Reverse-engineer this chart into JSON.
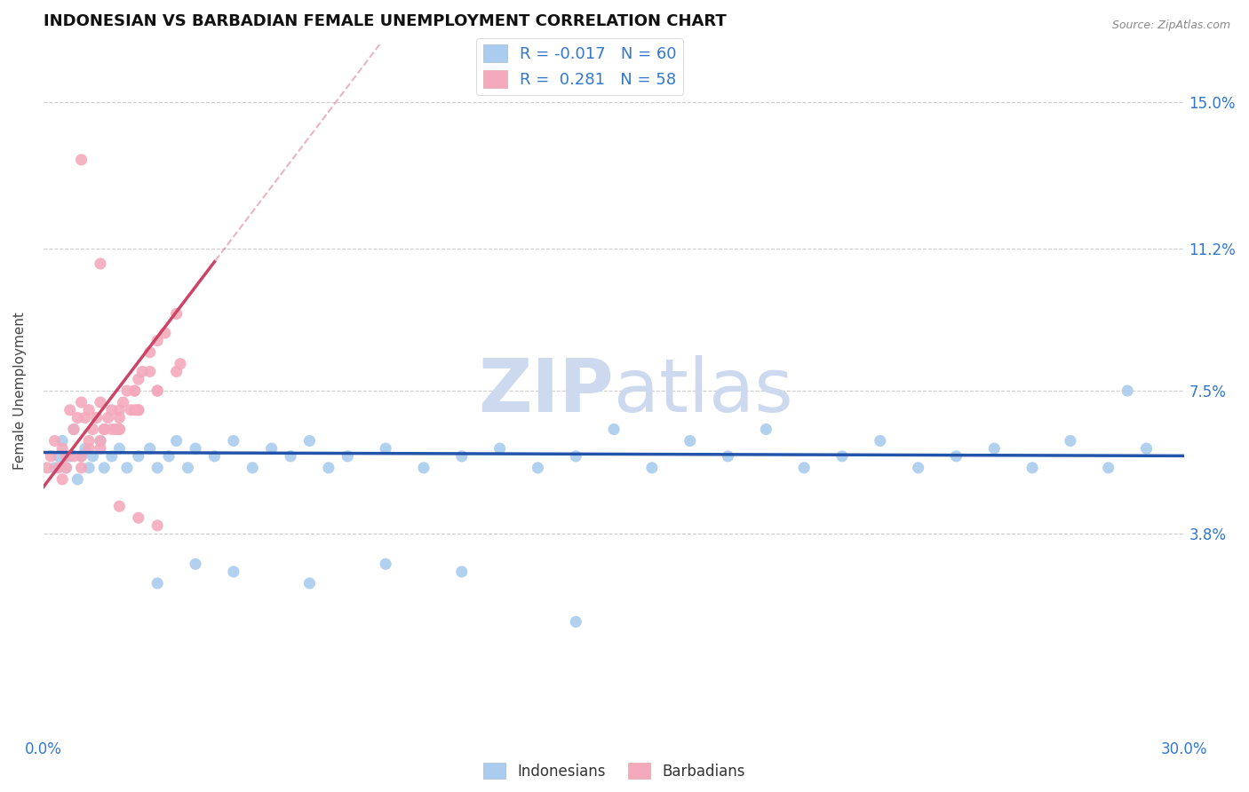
{
  "title": "INDONESIAN VS BARBADIAN FEMALE UNEMPLOYMENT CORRELATION CHART",
  "source": "Source: ZipAtlas.com",
  "ylabel": "Female Unemployment",
  "xlim": [
    0.0,
    30.0
  ],
  "ylim": [
    -1.5,
    16.5
  ],
  "yticks": [
    3.8,
    7.5,
    11.2,
    15.0
  ],
  "ytick_labels": [
    "3.8%",
    "7.5%",
    "11.2%",
    "15.0%"
  ],
  "xticks": [
    0.0,
    30.0
  ],
  "xtick_labels": [
    "0.0%",
    "30.0%"
  ],
  "background_color": "#ffffff",
  "grid_color": "#cccccc",
  "indonesian_color": "#aaccee",
  "barbadian_color": "#f4aabc",
  "indonesian_line_color": "#2255aa",
  "barbadian_line_color": "#cc4466",
  "legend_r_indonesian": "-0.017",
  "legend_n_indonesian": "60",
  "legend_r_barbadian": "0.281",
  "legend_n_barbadian": "58",
  "title_fontsize": 13,
  "axis_label_fontsize": 11,
  "tick_fontsize": 12,
  "watermark_zip": "ZIP",
  "watermark_atlas": "atlas",
  "watermark_color": "#ccd9ee",
  "watermark_fontsize": 60,
  "indonesian_scatter_x": [
    0.3,
    0.4,
    0.5,
    0.6,
    0.7,
    0.8,
    0.9,
    1.0,
    1.1,
    1.2,
    1.3,
    1.5,
    1.6,
    1.8,
    2.0,
    2.2,
    2.5,
    2.8,
    3.0,
    3.3,
    3.5,
    3.8,
    4.0,
    4.5,
    5.0,
    5.5,
    6.0,
    6.5,
    7.0,
    7.5,
    8.0,
    9.0,
    10.0,
    11.0,
    12.0,
    13.0,
    14.0,
    15.0,
    16.0,
    17.0,
    18.0,
    19.0,
    20.0,
    21.0,
    22.0,
    23.0,
    24.0,
    25.0,
    26.0,
    27.0,
    28.0,
    29.0,
    3.0,
    4.0,
    5.0,
    7.0,
    9.0,
    11.0,
    14.0,
    28.5
  ],
  "indonesian_scatter_y": [
    5.5,
    5.8,
    6.2,
    5.5,
    5.8,
    6.5,
    5.2,
    5.8,
    6.0,
    5.5,
    5.8,
    6.2,
    5.5,
    5.8,
    6.0,
    5.5,
    5.8,
    6.0,
    5.5,
    5.8,
    6.2,
    5.5,
    6.0,
    5.8,
    6.2,
    5.5,
    6.0,
    5.8,
    6.2,
    5.5,
    5.8,
    6.0,
    5.5,
    5.8,
    6.0,
    5.5,
    5.8,
    6.5,
    5.5,
    6.2,
    5.8,
    6.5,
    5.5,
    5.8,
    6.2,
    5.5,
    5.8,
    6.0,
    5.5,
    6.2,
    5.5,
    6.0,
    2.5,
    3.0,
    2.8,
    2.5,
    3.0,
    2.8,
    1.5,
    7.5
  ],
  "barbadian_scatter_x": [
    0.1,
    0.2,
    0.3,
    0.4,
    0.5,
    0.6,
    0.7,
    0.8,
    0.9,
    1.0,
    1.1,
    1.2,
    1.3,
    1.4,
    1.5,
    1.6,
    1.7,
    1.8,
    1.9,
    2.0,
    2.1,
    2.2,
    2.3,
    2.4,
    2.5,
    2.6,
    2.8,
    3.0,
    3.2,
    3.5,
    1.0,
    1.5,
    2.0,
    2.5,
    3.0,
    0.5,
    1.0,
    1.5,
    2.0,
    2.5,
    3.5,
    0.8,
    1.2,
    1.6,
    2.0,
    2.4,
    2.8,
    1.0,
    1.5,
    2.0,
    2.5,
    3.0,
    0.6,
    1.2,
    1.8,
    2.4,
    3.0,
    3.6
  ],
  "barbadian_scatter_y": [
    5.5,
    5.8,
    6.2,
    5.5,
    6.0,
    5.8,
    7.0,
    6.5,
    6.8,
    7.2,
    6.8,
    7.0,
    6.5,
    6.8,
    7.2,
    6.5,
    6.8,
    7.0,
    6.5,
    6.8,
    7.2,
    7.5,
    7.0,
    7.5,
    7.8,
    8.0,
    8.5,
    8.8,
    9.0,
    9.5,
    5.5,
    6.2,
    6.5,
    7.0,
    7.5,
    5.2,
    5.8,
    6.0,
    6.5,
    7.0,
    8.0,
    5.8,
    6.2,
    6.5,
    7.0,
    7.5,
    8.0,
    13.5,
    10.8,
    4.5,
    4.2,
    4.0,
    5.5,
    6.0,
    6.5,
    7.0,
    7.5,
    8.2
  ]
}
